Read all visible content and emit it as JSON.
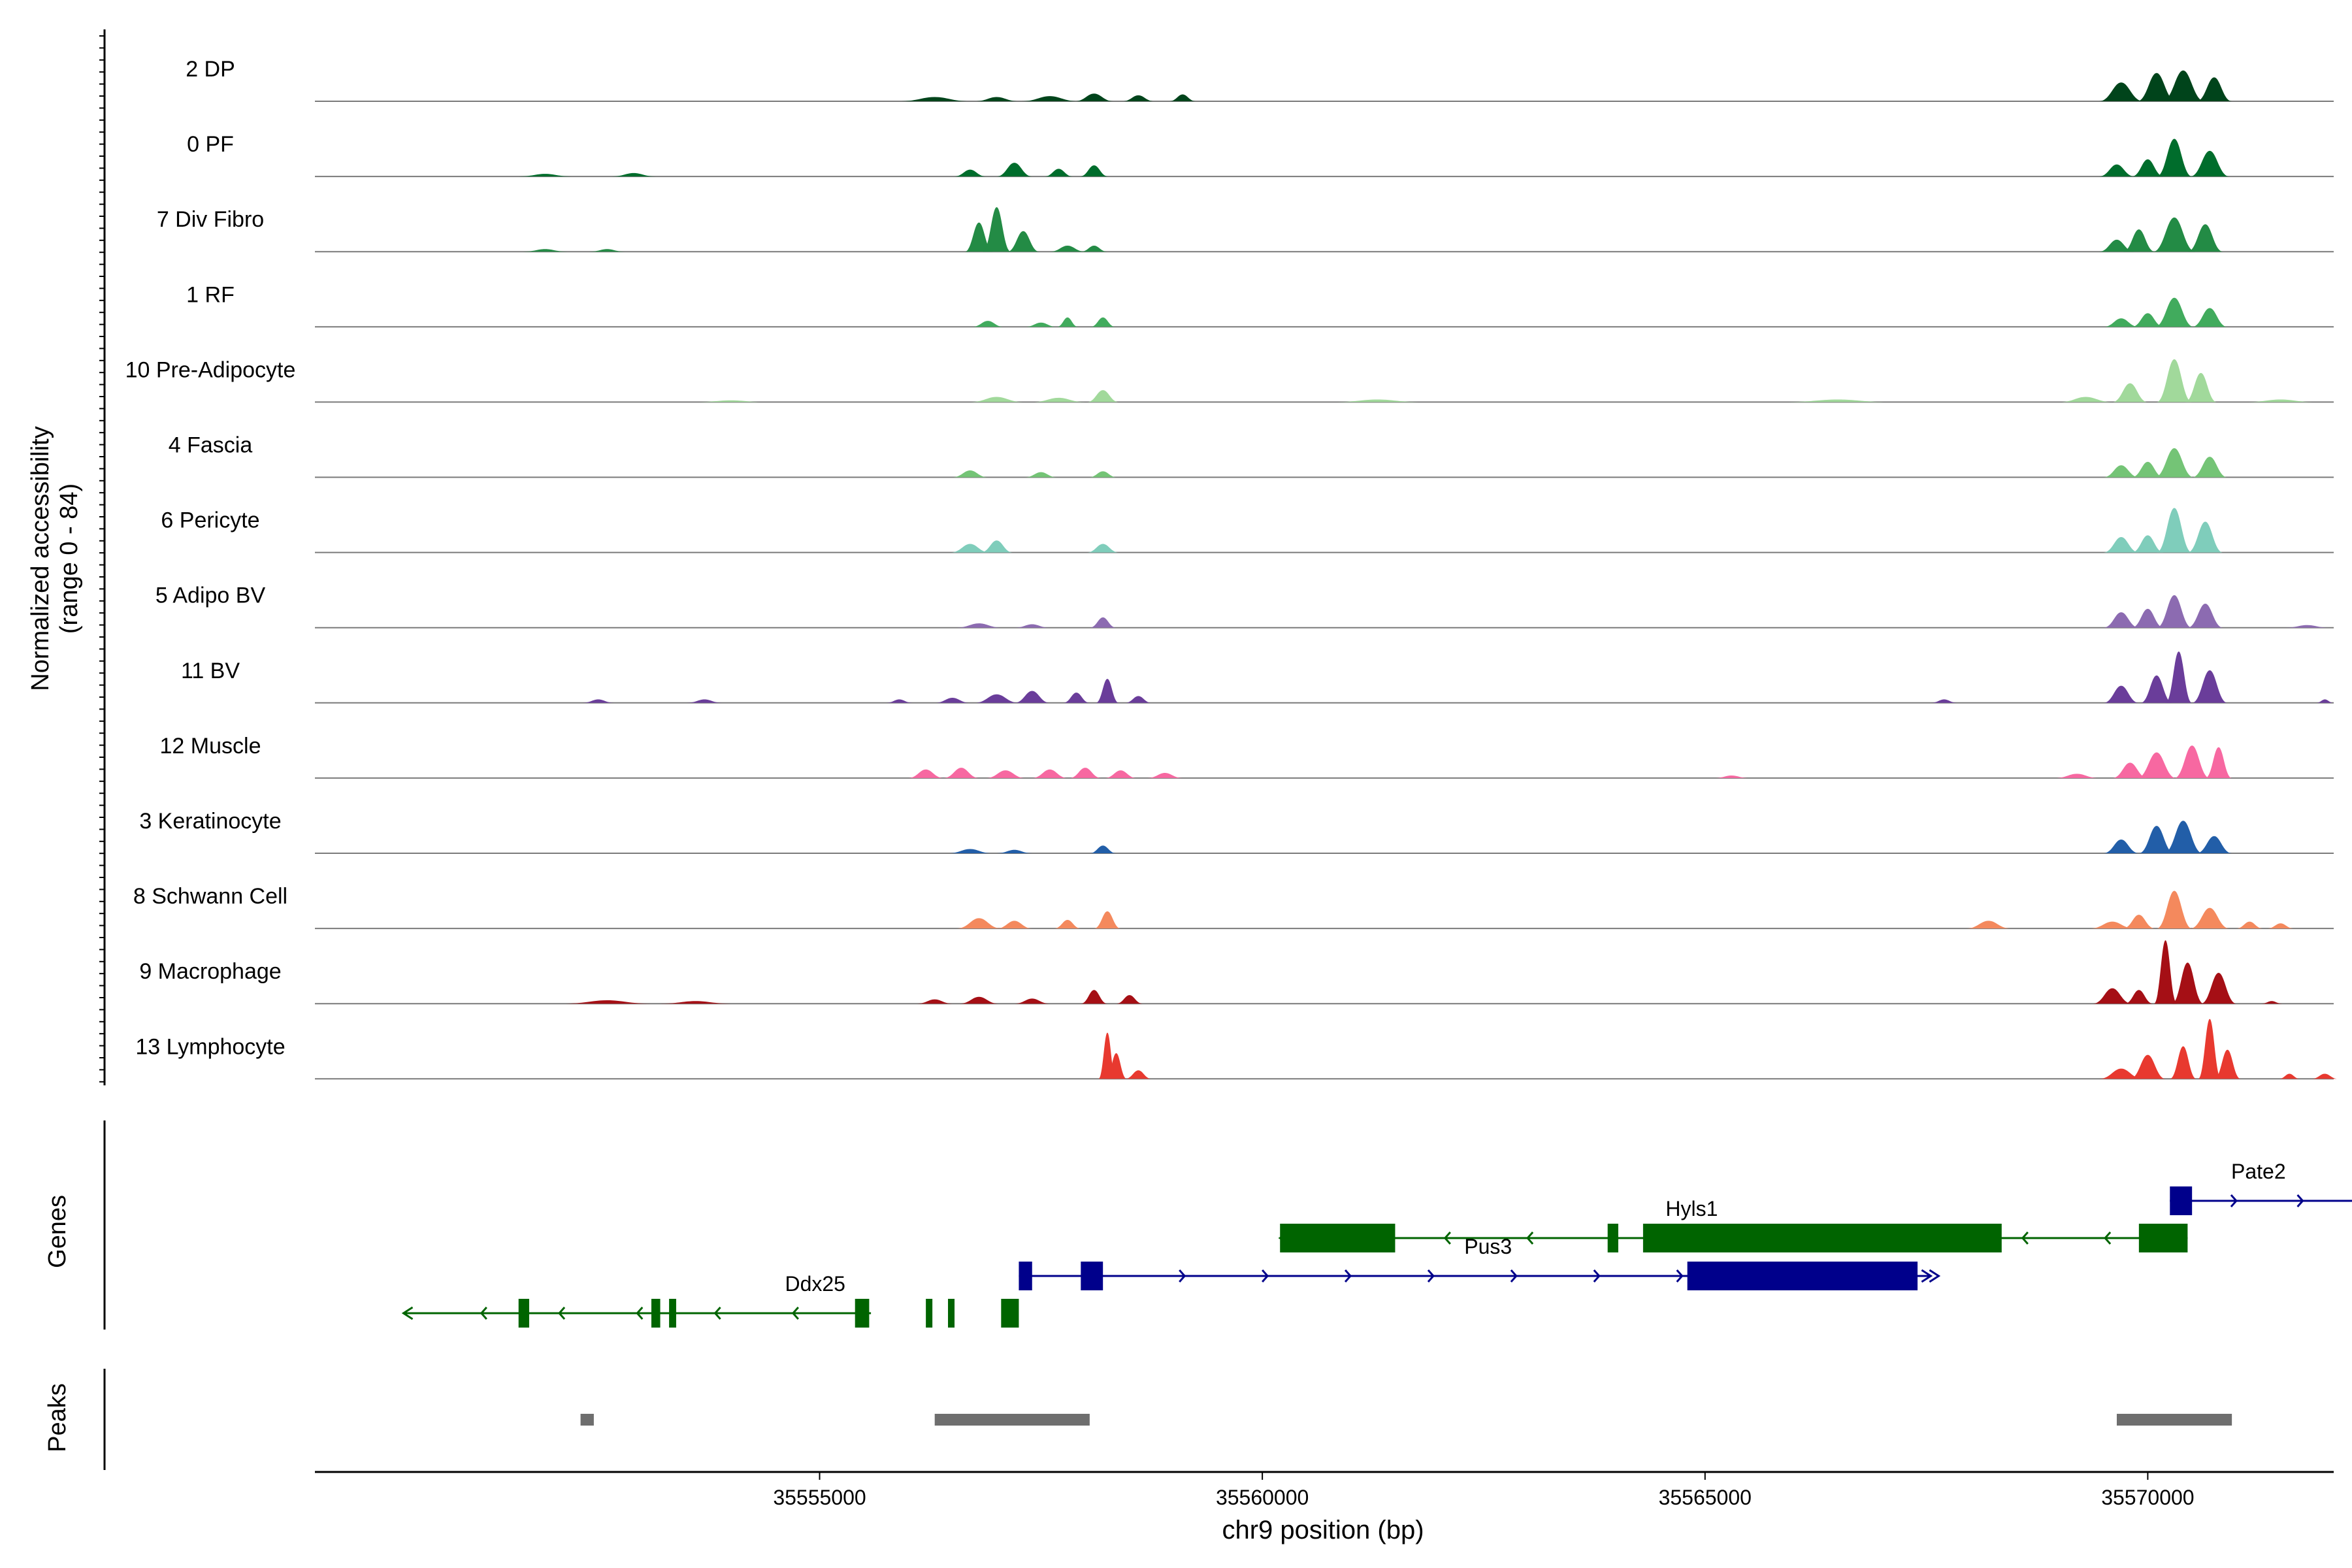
{
  "chart_data": {
    "type": "area",
    "title": "",
    "xlabel": "chr9 position (bp)",
    "ylabel_lines": [
      "Normalized accessibility",
      "(range 0 - 84)"
    ],
    "genes_label": "Genes",
    "peaks_label": "Peaks",
    "xlim": [
      35549300,
      35572100
    ],
    "y_range": [
      0,
      84
    ],
    "x_ticks": [
      35555000,
      35560000,
      35565000,
      35570000
    ],
    "x_tick_labels": [
      "35555000",
      "35560000",
      "35565000",
      "35570000"
    ],
    "tracks": [
      {
        "name": "2 DP",
        "color": "#00441b",
        "peaks": [
          [
            35556300,
            400,
            5
          ],
          [
            35557000,
            250,
            5
          ],
          [
            35557600,
            320,
            6
          ],
          [
            35558100,
            220,
            9
          ],
          [
            35558600,
            180,
            7
          ],
          [
            35559100,
            150,
            8
          ],
          [
            35569700,
            250,
            22
          ],
          [
            35570100,
            220,
            33
          ],
          [
            35570400,
            240,
            36
          ],
          [
            35570750,
            200,
            28
          ]
        ]
      },
      {
        "name": "0 PF",
        "color": "#006d2c",
        "peaks": [
          [
            35551900,
            300,
            3
          ],
          [
            35552900,
            250,
            4
          ],
          [
            35556700,
            180,
            8
          ],
          [
            35557200,
            200,
            16
          ],
          [
            35557700,
            160,
            9
          ],
          [
            35558100,
            160,
            13
          ],
          [
            35569650,
            200,
            14
          ],
          [
            35570000,
            180,
            20
          ],
          [
            35570300,
            200,
            44
          ],
          [
            35570700,
            220,
            30
          ]
        ]
      },
      {
        "name": "7 Div Fibro",
        "color": "#238b45",
        "peaks": [
          [
            35551900,
            250,
            3
          ],
          [
            35552600,
            200,
            3
          ],
          [
            35556800,
            160,
            34
          ],
          [
            35557000,
            160,
            52
          ],
          [
            35557300,
            180,
            24
          ],
          [
            35557800,
            200,
            7
          ],
          [
            35558100,
            150,
            7
          ],
          [
            35569650,
            200,
            14
          ],
          [
            35569900,
            180,
            26
          ],
          [
            35570300,
            240,
            40
          ],
          [
            35570650,
            200,
            32
          ]
        ]
      },
      {
        "name": "1 RF",
        "color": "#41ab5d",
        "peaks": [
          [
            35556900,
            180,
            7
          ],
          [
            35557500,
            180,
            5
          ],
          [
            35557800,
            120,
            11
          ],
          [
            35558200,
            140,
            11
          ],
          [
            35569700,
            200,
            10
          ],
          [
            35570000,
            180,
            16
          ],
          [
            35570300,
            220,
            34
          ],
          [
            35570700,
            200,
            22
          ]
        ]
      },
      {
        "name": "10 Pre-Adipocyte",
        "color": "#a1d99b",
        "peaks": [
          [
            35554000,
            400,
            2
          ],
          [
            35557000,
            300,
            6
          ],
          [
            35557700,
            300,
            5
          ],
          [
            35558200,
            180,
            14
          ],
          [
            35561300,
            500,
            3
          ],
          [
            35566500,
            600,
            3
          ],
          [
            35569300,
            300,
            6
          ],
          [
            35569800,
            200,
            22
          ],
          [
            35570300,
            200,
            50
          ],
          [
            35570600,
            180,
            34
          ],
          [
            35571500,
            400,
            3
          ]
        ]
      },
      {
        "name": "4 Fascia",
        "color": "#74c476",
        "peaks": [
          [
            35556700,
            200,
            8
          ],
          [
            35557500,
            180,
            6
          ],
          [
            35558200,
            160,
            7
          ],
          [
            35569700,
            200,
            14
          ],
          [
            35570000,
            180,
            18
          ],
          [
            35570300,
            220,
            34
          ],
          [
            35570700,
            200,
            24
          ]
        ]
      },
      {
        "name": "6 Pericyte",
        "color": "#7fcdbb",
        "peaks": [
          [
            35556700,
            220,
            10
          ],
          [
            35557000,
            180,
            14
          ],
          [
            35558200,
            180,
            10
          ],
          [
            35569700,
            200,
            18
          ],
          [
            35570000,
            180,
            20
          ],
          [
            35570300,
            200,
            52
          ],
          [
            35570650,
            200,
            36
          ]
        ]
      },
      {
        "name": "5 Adipo BV",
        "color": "#8c6bb1",
        "peaks": [
          [
            35556800,
            260,
            5
          ],
          [
            35557400,
            200,
            4
          ],
          [
            35558200,
            150,
            12
          ],
          [
            35569700,
            200,
            18
          ],
          [
            35570000,
            180,
            22
          ],
          [
            35570300,
            200,
            38
          ],
          [
            35570650,
            200,
            28
          ],
          [
            35571800,
            250,
            3
          ]
        ]
      },
      {
        "name": "11 BV",
        "color": "#6a3d9a",
        "peaks": [
          [
            35552500,
            180,
            4
          ],
          [
            35553700,
            200,
            4
          ],
          [
            35555900,
            150,
            4
          ],
          [
            35556500,
            200,
            6
          ],
          [
            35557000,
            250,
            10
          ],
          [
            35557400,
            200,
            14
          ],
          [
            35557900,
            150,
            12
          ],
          [
            35558250,
            130,
            28
          ],
          [
            35558600,
            150,
            8
          ],
          [
            35567700,
            150,
            4
          ],
          [
            35569700,
            200,
            20
          ],
          [
            35570100,
            180,
            32
          ],
          [
            35570350,
            150,
            60
          ],
          [
            35570700,
            200,
            38
          ],
          [
            35572000,
            100,
            4
          ]
        ]
      },
      {
        "name": "12 Muscle",
        "color": "#f768a1",
        "peaks": [
          [
            35556200,
            200,
            10
          ],
          [
            35556600,
            200,
            12
          ],
          [
            35557100,
            220,
            9
          ],
          [
            35557600,
            200,
            10
          ],
          [
            35558000,
            180,
            12
          ],
          [
            35558400,
            180,
            9
          ],
          [
            35558900,
            200,
            6
          ],
          [
            35565300,
            200,
            3
          ],
          [
            35569200,
            250,
            5
          ],
          [
            35569800,
            200,
            18
          ],
          [
            35570100,
            220,
            30
          ],
          [
            35570500,
            200,
            38
          ],
          [
            35570800,
            150,
            36
          ]
        ]
      },
      {
        "name": "3 Keratinocyte",
        "color": "#225ea8",
        "peaks": [
          [
            35556700,
            250,
            5
          ],
          [
            35557200,
            200,
            4
          ],
          [
            35558200,
            150,
            9
          ],
          [
            35569700,
            200,
            16
          ],
          [
            35570100,
            200,
            32
          ],
          [
            35570400,
            220,
            38
          ],
          [
            35570750,
            200,
            20
          ]
        ]
      },
      {
        "name": "8 Schwann Cell",
        "color": "#f4895d",
        "peaks": [
          [
            35556800,
            250,
            12
          ],
          [
            35557200,
            200,
            9
          ],
          [
            35557800,
            150,
            10
          ],
          [
            35558250,
            150,
            20
          ],
          [
            35568200,
            250,
            9
          ],
          [
            35569600,
            250,
            8
          ],
          [
            35569900,
            180,
            16
          ],
          [
            35570300,
            200,
            44
          ],
          [
            35570700,
            220,
            24
          ],
          [
            35571150,
            150,
            8
          ],
          [
            35571500,
            150,
            6
          ]
        ]
      },
      {
        "name": "9 Macrophage",
        "color": "#a50f15",
        "peaks": [
          [
            35552600,
            500,
            4
          ],
          [
            35553600,
            400,
            3
          ],
          [
            35556300,
            200,
            5
          ],
          [
            35556800,
            220,
            8
          ],
          [
            35557400,
            200,
            6
          ],
          [
            35558100,
            150,
            16
          ],
          [
            35558500,
            150,
            10
          ],
          [
            35569600,
            220,
            18
          ],
          [
            35569900,
            160,
            16
          ],
          [
            35570200,
            130,
            74
          ],
          [
            35570450,
            180,
            48
          ],
          [
            35570800,
            200,
            36
          ],
          [
            35571400,
            120,
            3
          ]
        ]
      },
      {
        "name": "13 Lymphocyte",
        "color": "#e8392f",
        "peaks": [
          [
            35558250,
            100,
            54
          ],
          [
            35558350,
            120,
            30
          ],
          [
            35558600,
            150,
            10
          ],
          [
            35569700,
            250,
            12
          ],
          [
            35570000,
            200,
            28
          ],
          [
            35570400,
            150,
            38
          ],
          [
            35570700,
            130,
            70
          ],
          [
            35570900,
            150,
            34
          ],
          [
            35571600,
            120,
            6
          ],
          [
            35572000,
            150,
            6
          ]
        ]
      }
    ],
    "genes": [
      {
        "name": "Ddx25",
        "strand": "-",
        "color": "#006400",
        "row": 3,
        "start": 35550300,
        "end": 35555580,
        "label_x": 35554950,
        "exons": [
          [
            35551600,
            35551720
          ],
          [
            35553100,
            35553200
          ],
          [
            35553300,
            35553380
          ],
          [
            35555400,
            35555560
          ],
          [
            35556200,
            35556240
          ],
          [
            35556450,
            35556520
          ],
          [
            35557050,
            35557250
          ]
        ]
      },
      {
        "name": "Pus3",
        "strand": "+",
        "color": "#00008b",
        "row": 2,
        "start": 35557250,
        "end": 35567550,
        "label_x": 35562550,
        "exons": [
          [
            35557250,
            35557400
          ],
          [
            35557950,
            35558200
          ],
          [
            35564800,
            35567400
          ]
        ]
      },
      {
        "name": "Hyls1",
        "strand": "-",
        "color": "#006400",
        "row": 1,
        "start": 35560200,
        "end": 35570450,
        "label_x": 35564850,
        "exons": [
          [
            35560200,
            35561500
          ],
          [
            35563900,
            35564020
          ],
          [
            35564300,
            35568350
          ],
          [
            35569900,
            35570450
          ]
        ]
      },
      {
        "name": "Pate2",
        "strand": "+",
        "color": "#00008b",
        "row": 0,
        "start": 35570250,
        "end": 35572500,
        "label_x": 35571250,
        "exons": [
          [
            35570250,
            35570500
          ]
        ]
      }
    ],
    "peaks": [
      [
        35552300,
        35552450
      ],
      [
        35556300,
        35558050
      ],
      [
        35569650,
        35570950
      ]
    ]
  }
}
